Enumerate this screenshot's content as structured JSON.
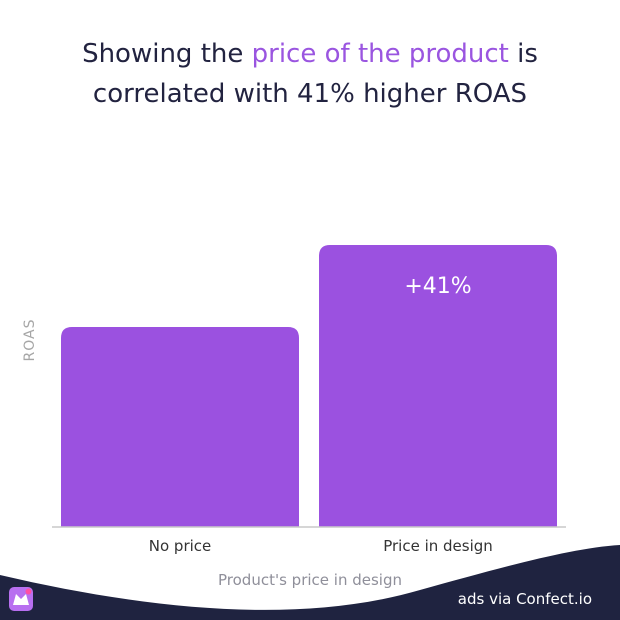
{
  "header": {
    "title_part1": "Showing the ",
    "title_highlight": "price of the product",
    "title_part2": " is",
    "title_line2": "correlated with 41% higher ROAS"
  },
  "chart_data": {
    "type": "bar",
    "categories": [
      "No price",
      "Price in design"
    ],
    "values": [
      100,
      141
    ],
    "data_labels": [
      "",
      "+41%"
    ],
    "xlabel": "Product's price in design",
    "ylabel": "ROAS",
    "ylim": [
      0,
      155
    ],
    "grid": false,
    "bar_color": "#9b51e0"
  },
  "footer": {
    "brand": "ads via Confect.io",
    "logo_icon": "confect-logo-icon",
    "wave_color": "#1f2340"
  },
  "colors": {
    "title": "#222340",
    "highlight": "#9a55e0"
  }
}
